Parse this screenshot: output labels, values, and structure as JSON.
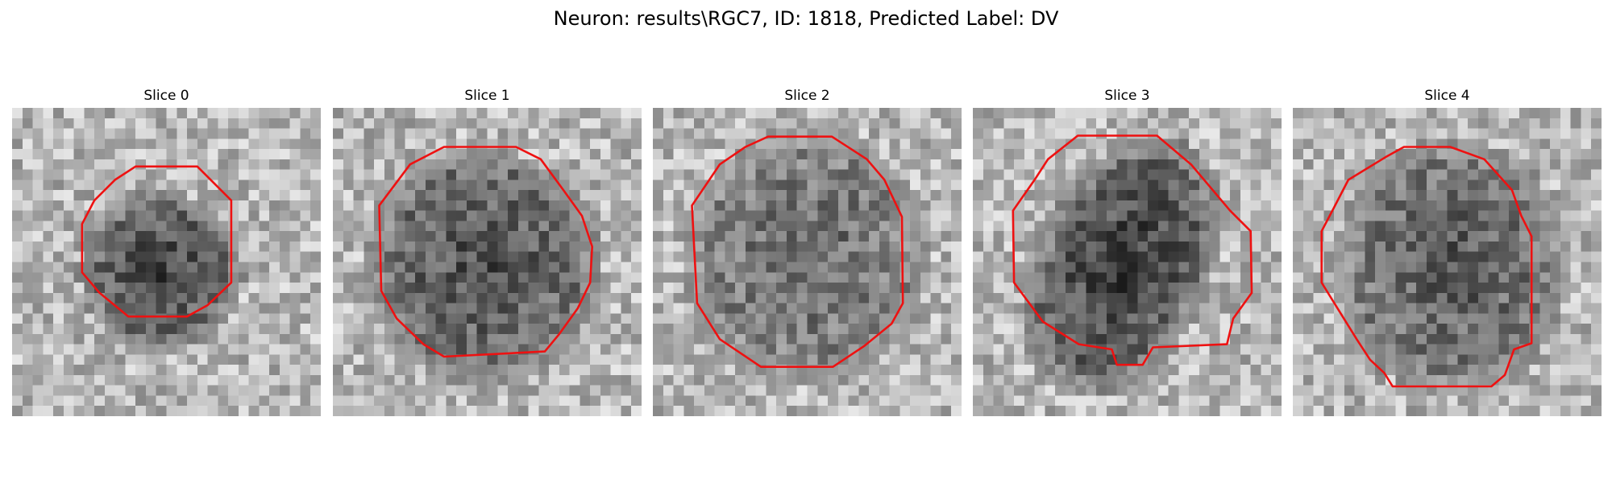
{
  "figure": {
    "title": "Neuron: results\\RGC7, ID: 1818, Predicted Label: DV"
  },
  "panels": [
    {
      "title": "Slice 0"
    },
    {
      "title": "Slice 1"
    },
    {
      "title": "Slice 2"
    },
    {
      "title": "Slice 3"
    },
    {
      "title": "Slice 4"
    }
  ],
  "colors": {
    "contour": "#ee1111",
    "background": "#ffffff"
  }
}
